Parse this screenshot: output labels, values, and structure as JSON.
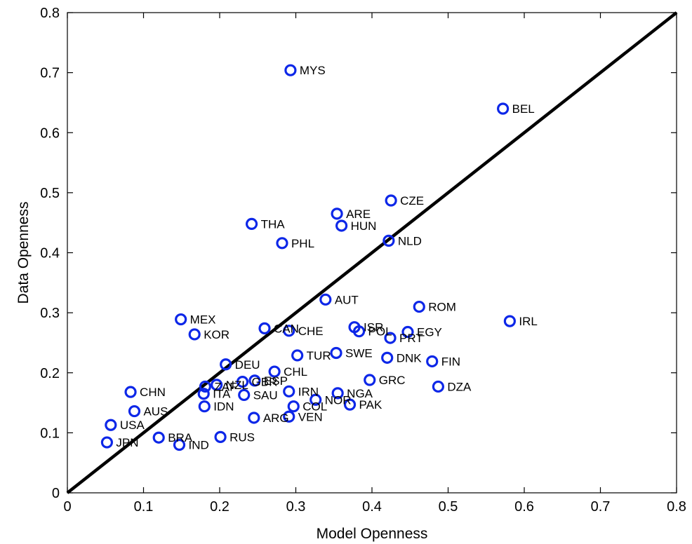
{
  "chart_data": {
    "type": "scatter",
    "xlabel": "Model Openness",
    "ylabel": "Data Openness",
    "xlim": [
      0,
      0.8
    ],
    "ylim": [
      0,
      0.8
    ],
    "xticks": [
      "0",
      "0.1",
      "0.2",
      "0.3",
      "0.4",
      "0.5",
      "0.6",
      "0.7",
      "0.8"
    ],
    "yticks": [
      "0",
      "0.1",
      "0.2",
      "0.3",
      "0.4",
      "0.5",
      "0.6",
      "0.7",
      "0.8"
    ],
    "reference_line": {
      "from": [
        0,
        0
      ],
      "to": [
        0.8,
        0.8
      ]
    },
    "marker_color": "#0d27e8",
    "points": [
      {
        "label": "MYS",
        "x": 0.293,
        "y": 0.704
      },
      {
        "label": "BEL",
        "x": 0.572,
        "y": 0.64
      },
      {
        "label": "CZE",
        "x": 0.425,
        "y": 0.487
      },
      {
        "label": "ARE",
        "x": 0.354,
        "y": 0.465
      },
      {
        "label": "HUN",
        "x": 0.36,
        "y": 0.445
      },
      {
        "label": "THA",
        "x": 0.242,
        "y": 0.448
      },
      {
        "label": "PHL",
        "x": 0.282,
        "y": 0.416
      },
      {
        "label": "NLD",
        "x": 0.422,
        "y": 0.42
      },
      {
        "label": "AUT",
        "x": 0.339,
        "y": 0.322
      },
      {
        "label": "ROM",
        "x": 0.462,
        "y": 0.31
      },
      {
        "label": "IRL",
        "x": 0.581,
        "y": 0.286
      },
      {
        "label": "MEX",
        "x": 0.149,
        "y": 0.289
      },
      {
        "label": "KOR",
        "x": 0.167,
        "y": 0.264
      },
      {
        "label": "CAN",
        "x": 0.259,
        "y": 0.274
      },
      {
        "label": "CHE",
        "x": 0.291,
        "y": 0.27
      },
      {
        "label": "ISR",
        "x": 0.377,
        "y": 0.276
      },
      {
        "label": "POL",
        "x": 0.383,
        "y": 0.269
      },
      {
        "label": "EGY",
        "x": 0.447,
        "y": 0.268
      },
      {
        "label": "PRT",
        "x": 0.424,
        "y": 0.258
      },
      {
        "label": "TUR",
        "x": 0.302,
        "y": 0.229
      },
      {
        "label": "SWE",
        "x": 0.353,
        "y": 0.233
      },
      {
        "label": "DNK",
        "x": 0.42,
        "y": 0.225
      },
      {
        "label": "FIN",
        "x": 0.479,
        "y": 0.219
      },
      {
        "label": "DEU",
        "x": 0.208,
        "y": 0.214
      },
      {
        "label": "CHL",
        "x": 0.272,
        "y": 0.202
      },
      {
        "label": "GRC",
        "x": 0.397,
        "y": 0.188
      },
      {
        "label": "DZA",
        "x": 0.487,
        "y": 0.177
      },
      {
        "label": "CHN",
        "x": 0.083,
        "y": 0.168
      },
      {
        "label": "ZAF",
        "x": 0.181,
        "y": 0.177
      },
      {
        "label": "NZL",
        "x": 0.196,
        "y": 0.18
      },
      {
        "label": "GBR",
        "x": 0.23,
        "y": 0.185
      },
      {
        "label": "ESP",
        "x": 0.246,
        "y": 0.187
      },
      {
        "label": "ITA",
        "x": 0.179,
        "y": 0.165
      },
      {
        "label": "SAU",
        "x": 0.232,
        "y": 0.163
      },
      {
        "label": "IRN",
        "x": 0.291,
        "y": 0.169
      },
      {
        "label": "NGA",
        "x": 0.355,
        "y": 0.166
      },
      {
        "label": "NOR",
        "x": 0.326,
        "y": 0.155
      },
      {
        "label": "PAK",
        "x": 0.371,
        "y": 0.147
      },
      {
        "label": "IDN",
        "x": 0.18,
        "y": 0.144
      },
      {
        "label": "COL",
        "x": 0.297,
        "y": 0.144
      },
      {
        "label": "AUS",
        "x": 0.088,
        "y": 0.136
      },
      {
        "label": "VEN",
        "x": 0.291,
        "y": 0.127
      },
      {
        "label": "ARG",
        "x": 0.245,
        "y": 0.125
      },
      {
        "label": "USA",
        "x": 0.057,
        "y": 0.113
      },
      {
        "label": "BRA",
        "x": 0.12,
        "y": 0.092
      },
      {
        "label": "RUS",
        "x": 0.201,
        "y": 0.093
      },
      {
        "label": "JPN",
        "x": 0.052,
        "y": 0.084
      },
      {
        "label": "IND",
        "x": 0.147,
        "y": 0.08
      }
    ]
  }
}
